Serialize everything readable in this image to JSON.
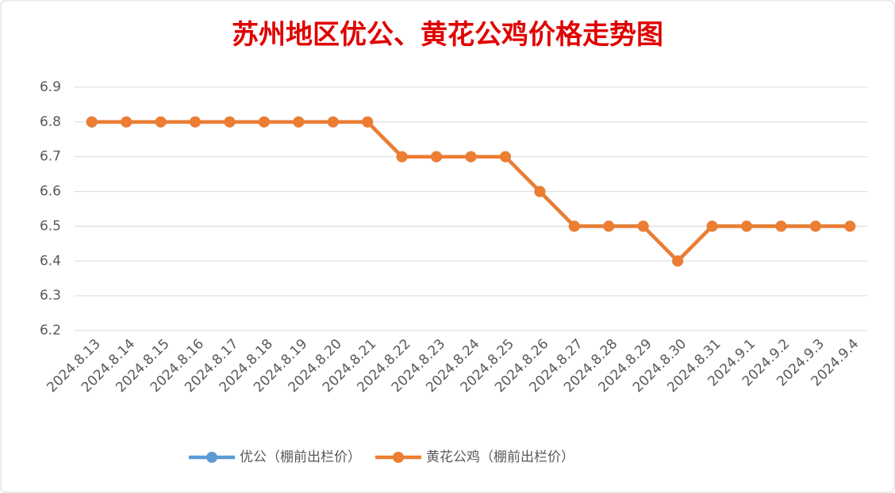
{
  "chart_data": {
    "type": "line",
    "title": "苏州地区优公、黄花公鸡价格走势图",
    "categories": [
      "2024.8.13",
      "2024.8.14",
      "2024.8.15",
      "2024.8.16",
      "2024.8.17",
      "2024.8.18",
      "2024.8.19",
      "2024.8.20",
      "2024.8.21",
      "2024.8.22",
      "2024.8.23",
      "2024.8.24",
      "2024.8.25",
      "2024.8.26",
      "2024.8.27",
      "2024.8.28",
      "2024.8.29",
      "2024.8.30",
      "2024.8.31",
      "2024.9.1",
      "2024.9.2",
      "2024.9.3",
      "2024.9.4"
    ],
    "series": [
      {
        "name": "优公（棚前出栏价）",
        "color": "#5b9bd5",
        "values": [
          6.8,
          6.8,
          6.8,
          6.8,
          6.8,
          6.8,
          6.8,
          6.8,
          6.8,
          6.7,
          6.7,
          6.7,
          6.7,
          6.6,
          6.5,
          6.5,
          6.5,
          6.4,
          6.5,
          6.5,
          6.5,
          6.5,
          6.5
        ]
      },
      {
        "name": "黄花公鸡（棚前出栏价）",
        "color": "#ed7d31",
        "values": [
          6.8,
          6.8,
          6.8,
          6.8,
          6.8,
          6.8,
          6.8,
          6.8,
          6.8,
          6.7,
          6.7,
          6.7,
          6.7,
          6.6,
          6.5,
          6.5,
          6.5,
          6.4,
          6.5,
          6.5,
          6.5,
          6.5,
          6.5
        ]
      }
    ],
    "ylim": [
      6.2,
      6.9
    ],
    "yticks": [
      6.2,
      6.3,
      6.4,
      6.5,
      6.6,
      6.7,
      6.8,
      6.9
    ],
    "grid": true,
    "legend": "bottom"
  }
}
